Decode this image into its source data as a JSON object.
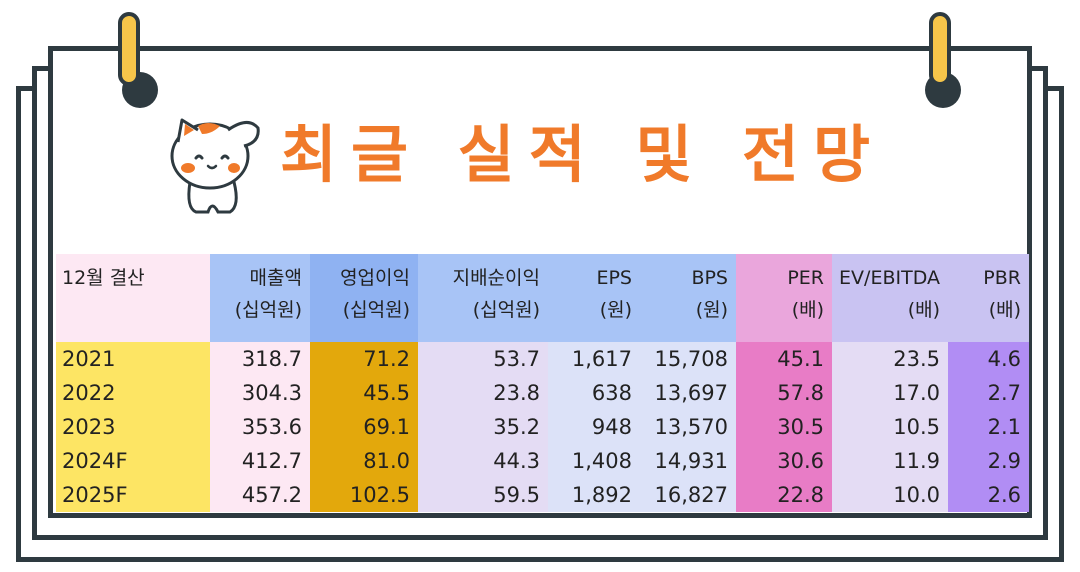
{
  "title": "최글 실적 및 전망",
  "table": {
    "corner": "12월 결산",
    "headers": [
      {
        "line1": "매출액",
        "line2": "(십억원)"
      },
      {
        "line1": "영업이익",
        "line2": "(십억원)"
      },
      {
        "line1": "지배순이익",
        "line2": "(십억원)"
      },
      {
        "line1": "EPS",
        "line2": "(원)"
      },
      {
        "line1": "BPS",
        "line2": "(원)"
      },
      {
        "line1": "PER",
        "line2": "(배)"
      },
      {
        "line1": "EV/EBITDA",
        "line2": "(배)"
      },
      {
        "line1": "PBR",
        "line2": "(배)"
      }
    ],
    "rows": [
      {
        "year": "2021",
        "vals": [
          "318.7",
          "71.2",
          "53.7",
          "1,617",
          "15,708",
          "45.1",
          "23.5",
          "4.6"
        ]
      },
      {
        "year": "2022",
        "vals": [
          "304.3",
          "45.5",
          "23.8",
          "638",
          "13,697",
          "57.8",
          "17.0",
          "2.7"
        ]
      },
      {
        "year": "2023",
        "vals": [
          "353.6",
          "69.1",
          "35.2",
          "948",
          "13,570",
          "30.5",
          "10.5",
          "2.1"
        ]
      },
      {
        "year": "2024F",
        "vals": [
          "412.7",
          "81.0",
          "44.3",
          "1,408",
          "14,931",
          "30.6",
          "11.9",
          "2.9"
        ]
      },
      {
        "year": "2025F",
        "vals": [
          "457.2",
          "102.5",
          "59.5",
          "1,892",
          "16,827",
          "22.8",
          "10.0",
          "2.6"
        ]
      }
    ]
  },
  "colors": {
    "title": "#f07a2a",
    "frame": "#2e3a40",
    "clip": "#f6c54a",
    "year_highlight": "#fde564",
    "op_profit_highlight": "#e3a80c",
    "per_highlight": "#e87cc6",
    "pbr_highlight": "#b18df4"
  }
}
